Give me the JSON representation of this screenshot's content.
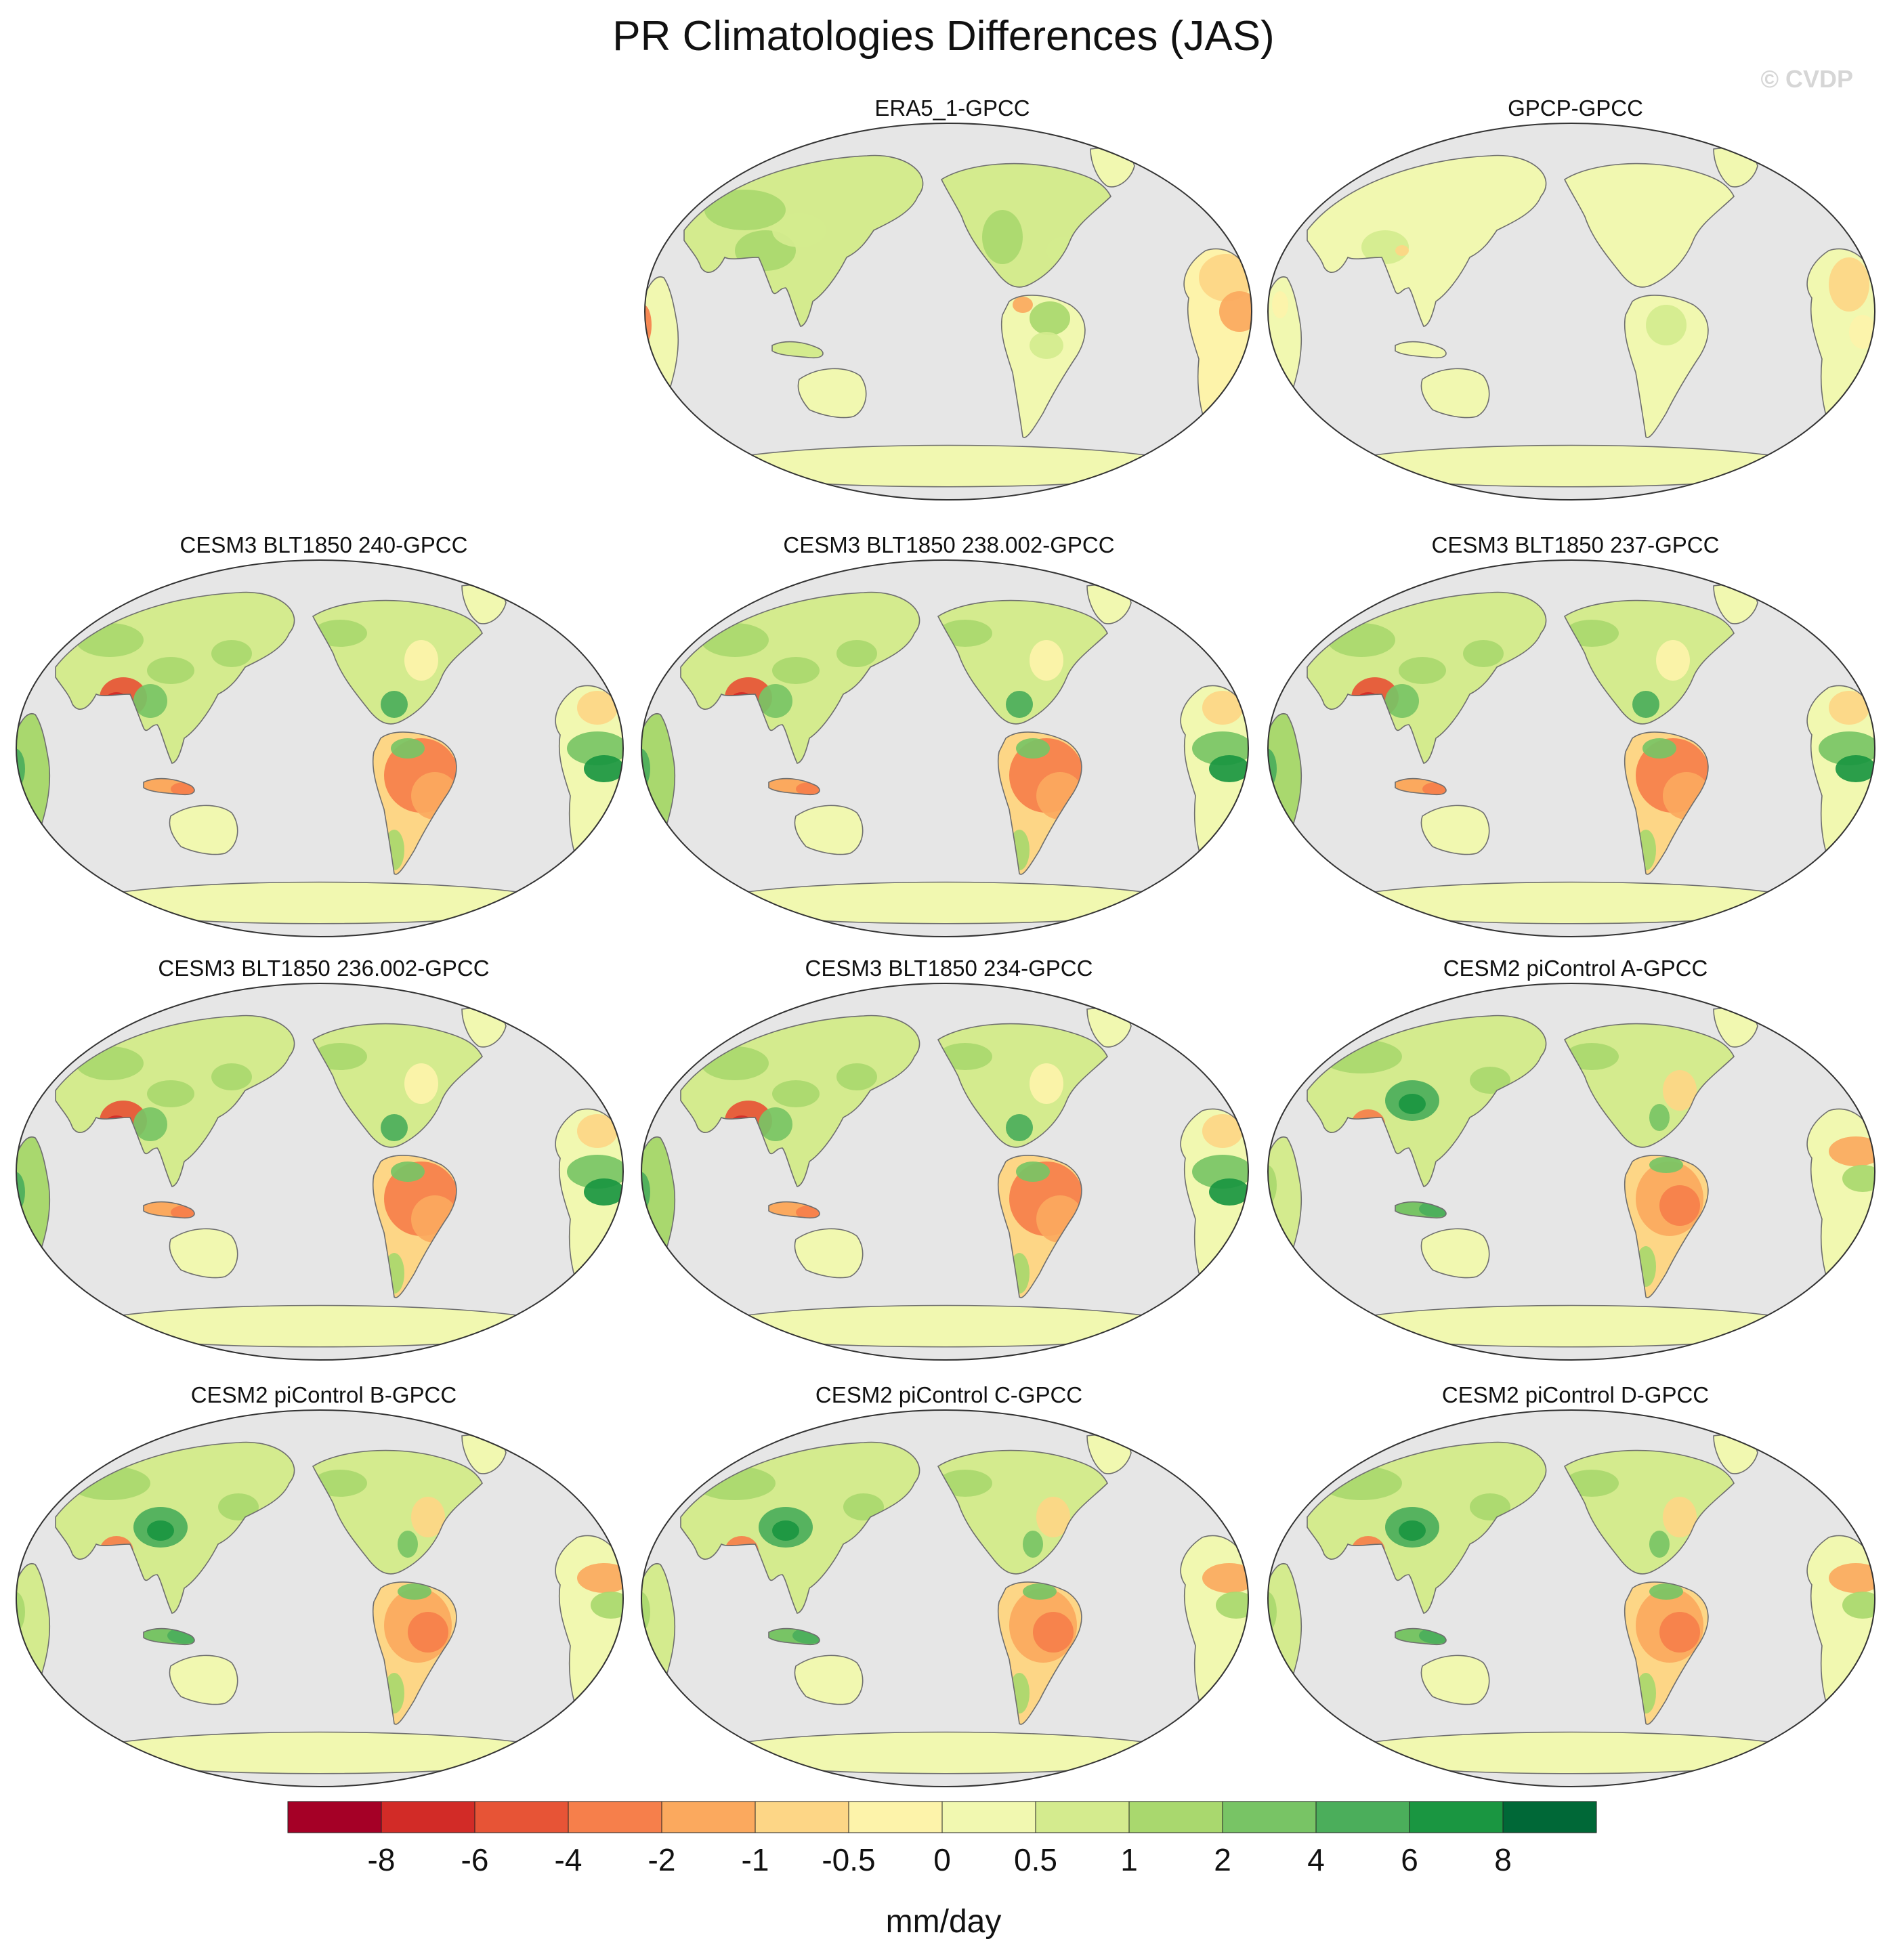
{
  "figure": {
    "title": "PR Climatologies Differences (JAS)",
    "watermark": "© CVDP"
  },
  "map": {
    "projection": "Robinson-like, Pacific-centered",
    "ocean_color": "#e6e6e6",
    "coast_color": "#6e6e6e",
    "fill": "land only"
  },
  "panels": [
    {
      "name": "ERA5_1-GPCC",
      "pattern": "obs_era5"
    },
    {
      "name": "GPCP-GPCC",
      "pattern": "obs_gpcp"
    },
    {
      "name": "CESM3 BLT1850 240-GPCC",
      "pattern": "cesm3"
    },
    {
      "name": "CESM3 BLT1850 238.002-GPCC",
      "pattern": "cesm3"
    },
    {
      "name": "CESM3 BLT1850 237-GPCC",
      "pattern": "cesm3"
    },
    {
      "name": "CESM3 BLT1850 236.002-GPCC",
      "pattern": "cesm3"
    },
    {
      "name": "CESM3 BLT1850 234-GPCC",
      "pattern": "cesm3"
    },
    {
      "name": "CESM2 piControl A-GPCC",
      "pattern": "cesm2"
    },
    {
      "name": "CESM2 piControl B-GPCC",
      "pattern": "cesm2"
    },
    {
      "name": "CESM2 piControl C-GPCC",
      "pattern": "cesm2"
    },
    {
      "name": "CESM2 piControl D-GPCC",
      "pattern": "cesm2"
    }
  ],
  "colorbar": {
    "units": "mm/day",
    "labels": [
      "-8",
      "-6",
      "-4",
      "-2",
      "-1",
      "-0.5",
      "0",
      "0.5",
      "1",
      "2",
      "4",
      "6",
      "8"
    ],
    "colors": [
      "#a50026",
      "#d22b27",
      "#e75436",
      "#f67f4b",
      "#fba95e",
      "#fdd686",
      "#fdf3aa",
      "#f1f8b0",
      "#d4eb8e",
      "#a9d86e",
      "#78c465",
      "#4bae5b",
      "#1a9641",
      "#006837"
    ]
  }
}
